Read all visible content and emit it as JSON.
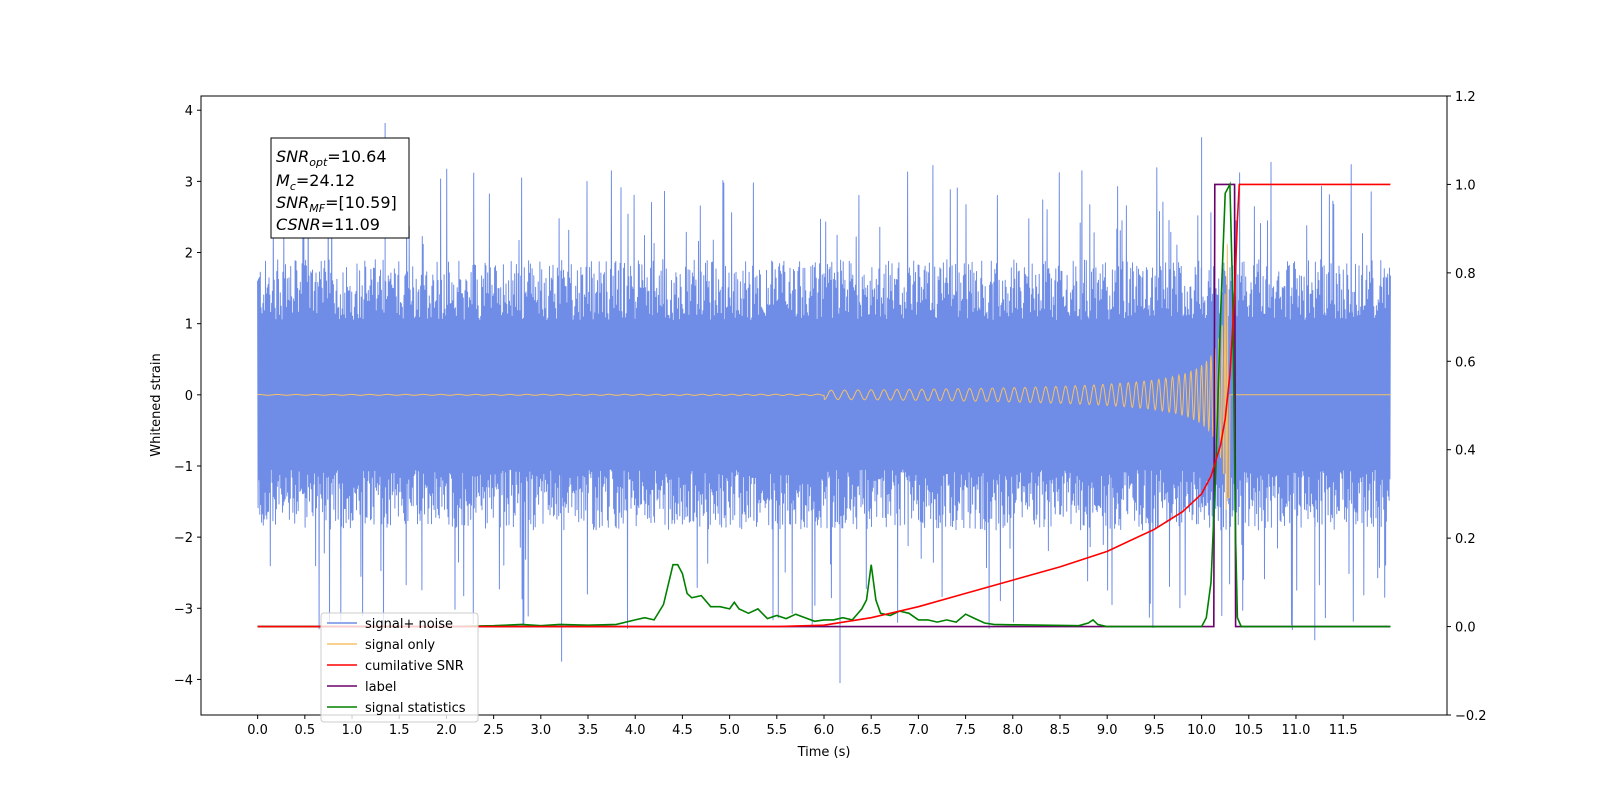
{
  "chart_data": {
    "type": "line",
    "xlabel": "Time (s)",
    "ylabel": "Whitened strain",
    "xlim": [
      -0.6,
      12.6
    ],
    "ylim": [
      -4.5,
      4.2
    ],
    "y2lim": [
      -0.2,
      1.2
    ],
    "x_ticks": [
      "0.0",
      "0.5",
      "1.0",
      "1.5",
      "2.0",
      "2.5",
      "3.0",
      "3.5",
      "4.0",
      "4.5",
      "5.0",
      "5.5",
      "6.0",
      "6.5",
      "7.0",
      "7.5",
      "8.0",
      "8.5",
      "9.0",
      "9.5",
      "10.0",
      "10.5",
      "11.0",
      "11.5"
    ],
    "x_tick_values": [
      0,
      0.5,
      1,
      1.5,
      2,
      2.5,
      3,
      3.5,
      4,
      4.5,
      5,
      5.5,
      6,
      6.5,
      7,
      7.5,
      8,
      8.5,
      9,
      9.5,
      10,
      10.5,
      11,
      11.5
    ],
    "y_ticks": [
      -4,
      -3,
      -2,
      -1,
      0,
      1,
      2,
      3,
      4
    ],
    "y2_ticks": [
      "−0.2",
      "0.0",
      "0.2",
      "0.4",
      "0.6",
      "0.8",
      "1.0",
      "1.2"
    ],
    "y2_tick_values": [
      -0.2,
      0.0,
      0.2,
      0.4,
      0.6,
      0.8,
      1.0,
      1.2
    ],
    "legend_position": "lower-left",
    "legend": [
      {
        "label": "signal+ noise",
        "color": "#6f8de6"
      },
      {
        "label": "signal only",
        "color": "#f5c06a"
      },
      {
        "label": "cumilative SNR",
        "color": "#ff0000"
      },
      {
        "label": "label",
        "color": "#6a006a"
      },
      {
        "label": "signal statistics",
        "color": "#008000"
      }
    ],
    "annotations": {
      "snr_opt": {
        "name": "SNR",
        "sub": "opt",
        "value": "=10.64"
      },
      "mc": {
        "name": "M",
        "sub": "c",
        "value": "=24.12"
      },
      "snr_mf": {
        "name": "SNR",
        "sub": "MF",
        "value": "=[10.59]"
      },
      "csnr": {
        "name": "CSNR",
        "sub": "",
        "value": "=11.09"
      }
    },
    "series": [
      {
        "name": "signal+ noise",
        "axis": "left",
        "color": "#6f8de6",
        "x_range": [
          0.0,
          12.0
        ],
        "typical_range": [
          -1.9,
          1.9
        ],
        "extremes": [
          {
            "x": 1.35,
            "y": 3.82
          },
          {
            "x": 6.17,
            "y": -4.05
          },
          {
            "x": 3.22,
            "y": -3.75
          },
          {
            "x": 10.0,
            "y": 3.62
          },
          {
            "x": 11.2,
            "y": -3.45
          }
        ]
      },
      {
        "name": "signal only",
        "axis": "left",
        "color": "#f5c06a",
        "x_range": [
          0.0,
          12.0
        ],
        "peak_x": 10.3,
        "peak_amplitude": 2.6
      },
      {
        "name": "cumilative SNR",
        "axis": "right",
        "color": "#ff0000",
        "x": [
          0.0,
          5.5,
          6.0,
          6.5,
          7.0,
          7.5,
          8.0,
          8.5,
          9.0,
          9.5,
          9.8,
          10.0,
          10.1,
          10.2,
          10.25,
          10.3,
          10.35,
          10.38,
          10.4,
          12.0
        ],
        "y": [
          0.0,
          0.0,
          0.003,
          0.02,
          0.045,
          0.075,
          0.105,
          0.135,
          0.17,
          0.22,
          0.26,
          0.3,
          0.34,
          0.41,
          0.47,
          0.57,
          0.75,
          0.92,
          1.0,
          1.0
        ]
      },
      {
        "name": "label",
        "axis": "right",
        "color": "#6a006a",
        "x": [
          0.0,
          10.13,
          10.14,
          10.35,
          10.36,
          12.0
        ],
        "y": [
          0.0,
          0.0,
          1.0,
          1.0,
          0.0,
          0.0
        ]
      },
      {
        "name": "signal statistics",
        "axis": "right",
        "color": "#008000",
        "x": [
          0.0,
          1.0,
          2.0,
          2.5,
          2.8,
          3.0,
          3.2,
          3.5,
          3.8,
          4.0,
          4.1,
          4.2,
          4.3,
          4.4,
          4.45,
          4.5,
          4.55,
          4.6,
          4.7,
          4.8,
          4.9,
          5.0,
          5.05,
          5.1,
          5.2,
          5.3,
          5.4,
          5.5,
          5.6,
          5.7,
          5.8,
          5.9,
          6.0,
          6.1,
          6.2,
          6.3,
          6.4,
          6.45,
          6.5,
          6.55,
          6.6,
          6.7,
          6.8,
          6.9,
          7.0,
          7.1,
          7.2,
          7.3,
          7.4,
          7.5,
          7.6,
          7.7,
          7.8,
          8.0,
          8.7,
          8.8,
          8.85,
          8.9,
          9.0,
          10.0,
          10.05,
          10.1,
          10.15,
          10.2,
          10.25,
          10.3,
          10.33,
          10.36,
          10.38,
          10.42,
          12.0
        ],
        "y": [
          0.0,
          0.0,
          0.0,
          0.002,
          0.005,
          0.002,
          0.005,
          0.003,
          0.005,
          0.015,
          0.02,
          0.015,
          0.05,
          0.14,
          0.14,
          0.12,
          0.075,
          0.065,
          0.07,
          0.045,
          0.045,
          0.04,
          0.055,
          0.04,
          0.03,
          0.04,
          0.018,
          0.025,
          0.018,
          0.028,
          0.02,
          0.012,
          0.015,
          0.015,
          0.02,
          0.015,
          0.04,
          0.06,
          0.14,
          0.06,
          0.03,
          0.025,
          0.035,
          0.03,
          0.015,
          0.015,
          0.01,
          0.015,
          0.01,
          0.028,
          0.018,
          0.008,
          0.005,
          0.004,
          0.002,
          0.008,
          0.015,
          0.005,
          0.0,
          0.0,
          0.02,
          0.1,
          0.35,
          0.7,
          0.98,
          1.0,
          0.75,
          0.2,
          0.02,
          0.0,
          0.0
        ]
      }
    ]
  }
}
